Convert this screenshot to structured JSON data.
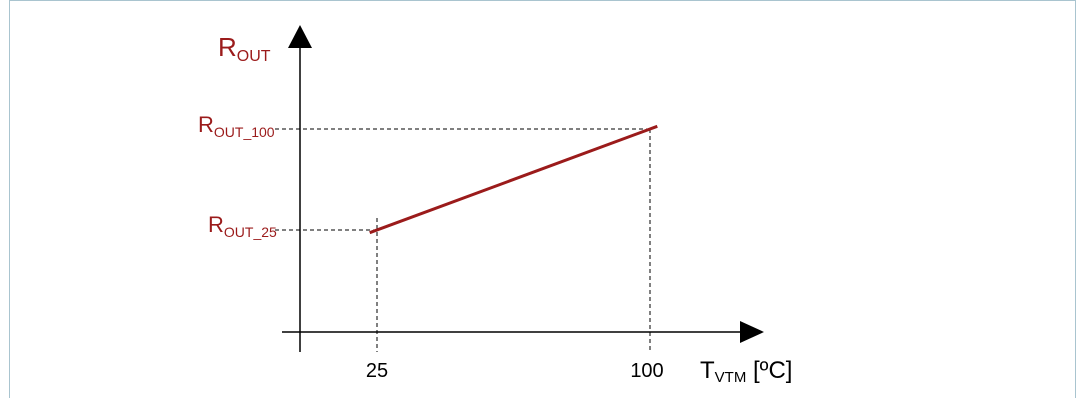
{
  "colors": {
    "accent": "#9b1b1b",
    "axis": "#000000",
    "frame": "#a9c4cf"
  },
  "labels": {
    "y_axis_main": "R",
    "y_axis_sub": "OUT",
    "x_axis_main": "T",
    "x_axis_sub": "VTM",
    "x_axis_unit": " [ºC]",
    "r100_main": "R",
    "r100_sub": "OUT_100",
    "r25_main": "R",
    "r25_sub": "OUT_25"
  },
  "x_ticks": [
    {
      "value": 25,
      "label": "25"
    },
    {
      "value": 100,
      "label": "100"
    }
  ],
  "chart_data": {
    "type": "line",
    "x": [
      23,
      102
    ],
    "series": [
      {
        "x_start": 23,
        "x_end": 102
      }
    ],
    "reference_points": [
      {
        "x": 25,
        "y_label": "R_OUT_25"
      },
      {
        "x": 100,
        "y_label": "R_OUT_100"
      }
    ]
  }
}
